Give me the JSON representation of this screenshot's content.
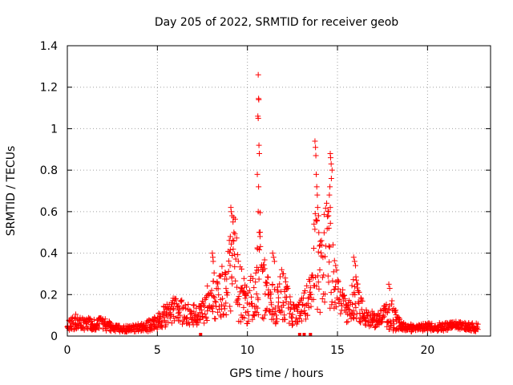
{
  "chart_data": {
    "type": "scatter",
    "title": "Day 205 of 2022, SRMTID for receiver geob",
    "xlabel": "GPS time / hours",
    "ylabel": "SRMTID / TECUs",
    "xlim": [
      0,
      23.5
    ],
    "ylim": [
      0,
      1.4
    ],
    "grid": true,
    "color": "#ff0000",
    "marker": "plus",
    "x_ticks": [
      0,
      5,
      10,
      15,
      20
    ],
    "x_tick_labels": [
      "0",
      "5",
      "10",
      "15",
      "20"
    ],
    "y_ticks": [
      0,
      0.2,
      0.4,
      0.6,
      0.8,
      1.0,
      1.2,
      1.4
    ],
    "y_tick_labels": [
      "0",
      "0.2",
      "0.4",
      "0.6",
      "0.8",
      "1",
      "1.2",
      "1.4"
    ],
    "series": [
      {
        "name": "SRMTID",
        "profile": [
          [
            0.0,
            0.05,
            0.02
          ],
          [
            0.5,
            0.07,
            0.04
          ],
          [
            1.0,
            0.06,
            0.03
          ],
          [
            1.5,
            0.055,
            0.03
          ],
          [
            2.0,
            0.06,
            0.035
          ],
          [
            2.5,
            0.04,
            0.02
          ],
          [
            3.0,
            0.035,
            0.015
          ],
          [
            3.5,
            0.035,
            0.015
          ],
          [
            4.0,
            0.04,
            0.02
          ],
          [
            4.5,
            0.05,
            0.03
          ],
          [
            5.0,
            0.07,
            0.04
          ],
          [
            5.5,
            0.1,
            0.06
          ],
          [
            6.0,
            0.12,
            0.07
          ],
          [
            6.5,
            0.11,
            0.06
          ],
          [
            7.0,
            0.1,
            0.05
          ],
          [
            7.5,
            0.12,
            0.06
          ],
          [
            8.0,
            0.18,
            0.12
          ],
          [
            8.5,
            0.2,
            0.12
          ],
          [
            9.0,
            0.3,
            0.2
          ],
          [
            9.3,
            0.4,
            0.22
          ],
          [
            9.5,
            0.22,
            0.15
          ],
          [
            10.0,
            0.15,
            0.1
          ],
          [
            10.5,
            0.2,
            0.15
          ],
          [
            10.7,
            0.35,
            0.3
          ],
          [
            11.0,
            0.2,
            0.12
          ],
          [
            11.5,
            0.15,
            0.1
          ],
          [
            12.0,
            0.2,
            0.12
          ],
          [
            12.5,
            0.1,
            0.05
          ],
          [
            13.0,
            0.12,
            0.06
          ],
          [
            13.5,
            0.2,
            0.1
          ],
          [
            13.8,
            0.4,
            0.25
          ],
          [
            14.0,
            0.3,
            0.2
          ],
          [
            14.5,
            0.4,
            0.3
          ],
          [
            14.8,
            0.25,
            0.15
          ],
          [
            15.0,
            0.2,
            0.1
          ],
          [
            15.5,
            0.12,
            0.06
          ],
          [
            16.0,
            0.2,
            0.12
          ],
          [
            16.5,
            0.1,
            0.05
          ],
          [
            17.0,
            0.08,
            0.04
          ],
          [
            17.5,
            0.09,
            0.05
          ],
          [
            18.0,
            0.1,
            0.08
          ],
          [
            18.5,
            0.05,
            0.02
          ],
          [
            19.0,
            0.04,
            0.02
          ],
          [
            19.5,
            0.04,
            0.015
          ],
          [
            20.0,
            0.045,
            0.02
          ],
          [
            20.5,
            0.045,
            0.02
          ],
          [
            21.0,
            0.045,
            0.02
          ],
          [
            21.5,
            0.05,
            0.02
          ],
          [
            22.0,
            0.05,
            0.02
          ],
          [
            22.5,
            0.045,
            0.02
          ],
          [
            22.8,
            0.04,
            0.02
          ]
        ],
        "notable_points": [
          [
            10.6,
            1.26
          ],
          [
            10.62,
            1.145
          ],
          [
            10.63,
            1.14
          ],
          [
            10.58,
            1.06
          ],
          [
            10.6,
            1.05
          ],
          [
            10.64,
            0.92
          ],
          [
            10.66,
            0.88
          ],
          [
            10.55,
            0.78
          ],
          [
            10.62,
            0.72
          ],
          [
            10.6,
            0.6
          ],
          [
            10.65,
            0.5
          ],
          [
            10.7,
            0.48
          ],
          [
            10.56,
            0.42
          ],
          [
            13.75,
            0.94
          ],
          [
            13.78,
            0.91
          ],
          [
            13.8,
            0.87
          ],
          [
            13.82,
            0.78
          ],
          [
            13.85,
            0.72
          ],
          [
            13.88,
            0.68
          ],
          [
            13.9,
            0.62
          ],
          [
            13.95,
            0.58
          ],
          [
            13.7,
            0.54
          ],
          [
            14.6,
            0.88
          ],
          [
            14.62,
            0.86
          ],
          [
            14.65,
            0.83
          ],
          [
            14.7,
            0.8
          ],
          [
            14.66,
            0.76
          ],
          [
            14.58,
            0.72
          ],
          [
            14.55,
            0.68
          ],
          [
            14.6,
            0.62
          ],
          [
            14.5,
            0.58
          ],
          [
            14.52,
            0.52
          ],
          [
            9.08,
            0.62
          ],
          [
            9.1,
            0.6
          ],
          [
            9.15,
            0.58
          ],
          [
            9.2,
            0.55
          ],
          [
            9.25,
            0.5
          ],
          [
            9.05,
            0.48
          ],
          [
            8.05,
            0.4
          ],
          [
            8.08,
            0.38
          ],
          [
            8.1,
            0.36
          ],
          [
            11.9,
            0.32
          ],
          [
            12.0,
            0.3
          ],
          [
            12.1,
            0.28
          ],
          [
            15.9,
            0.38
          ],
          [
            15.95,
            0.36
          ],
          [
            16.0,
            0.34
          ],
          [
            17.85,
            0.25
          ],
          [
            17.9,
            0.23
          ],
          [
            11.4,
            0.4
          ],
          [
            11.45,
            0.38
          ],
          [
            11.5,
            0.36
          ]
        ],
        "zero_markers": [
          7.4,
          12.9,
          13.15,
          13.5
        ]
      }
    ]
  }
}
